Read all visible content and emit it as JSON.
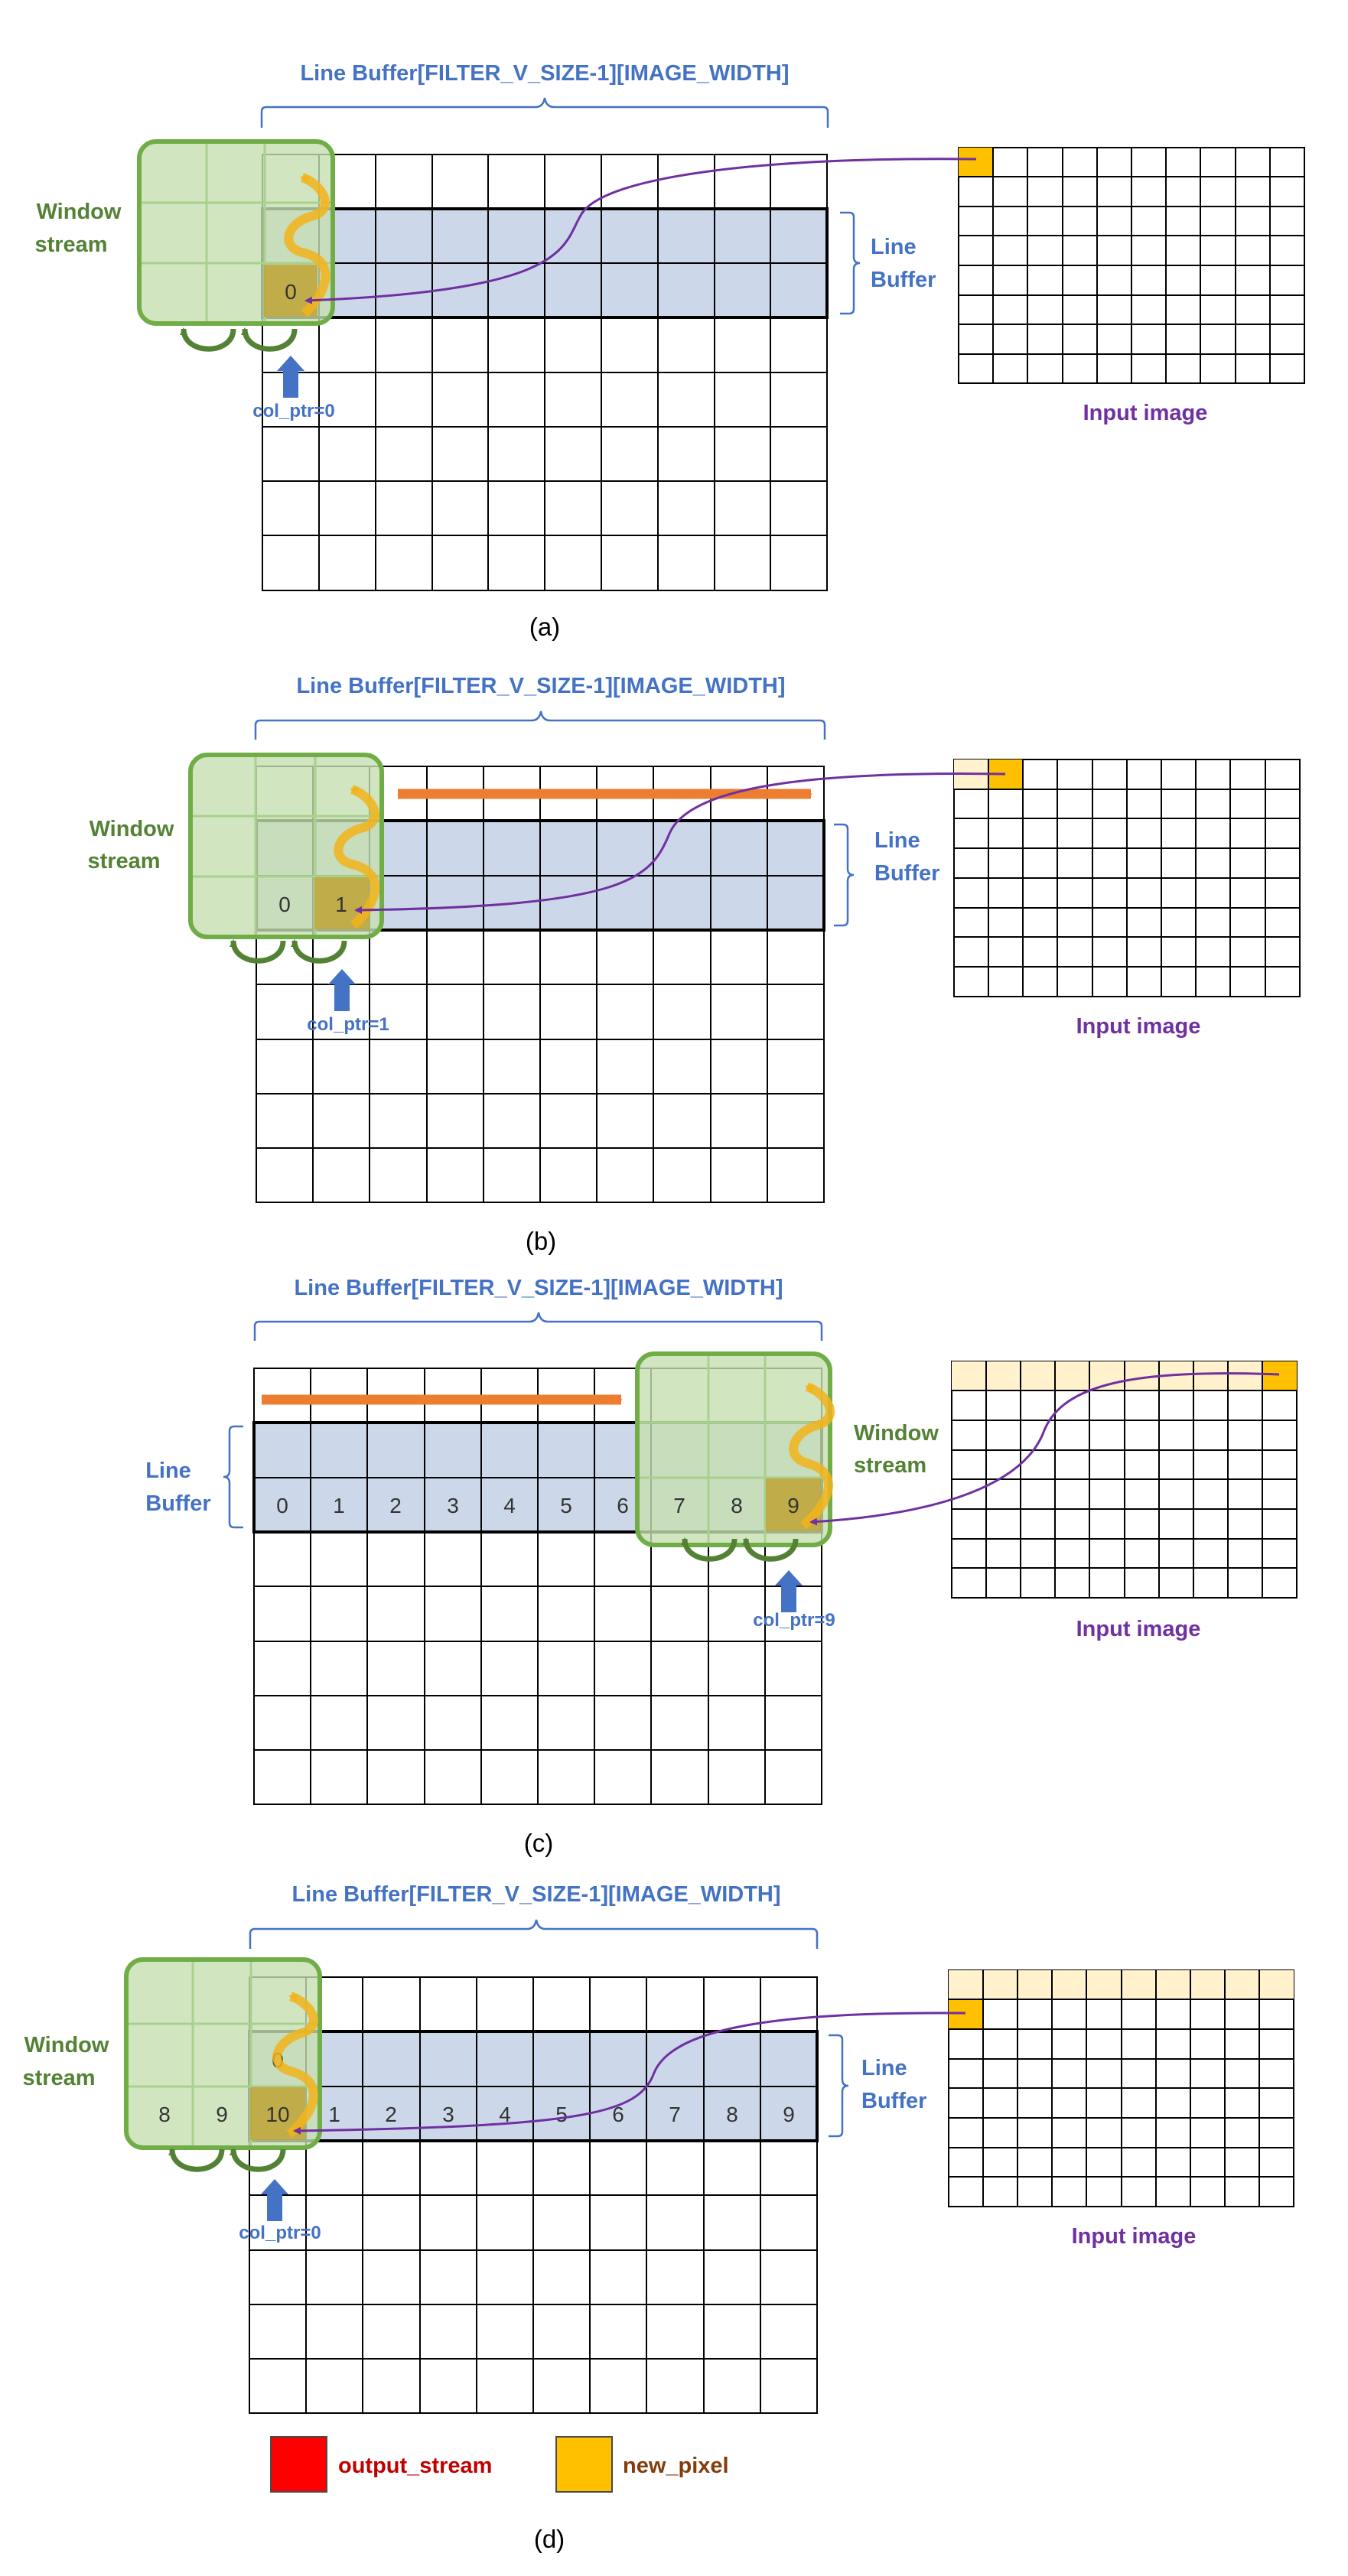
{
  "colors": {
    "grid_line": "#000000",
    "buffer_fill": "#CCD8EA",
    "window_fill": "#C6DFB0",
    "window_border": "#70AD47",
    "new_pixel": "#FFC000",
    "output_stream": "#FF0000",
    "consumed_pixel": "#FFF2CC",
    "brace": "#4472C4",
    "read_path": "#7030A0",
    "shift_arrow": "#ED7D31",
    "feed_arrow": "#F2B31B",
    "window_shift_arrow": "#548235",
    "ptr_arrow": "#4472C4"
  },
  "panels": [
    {
      "caption": "(a)",
      "line_buffer_title": "Line Buffer[FILTER_V_SIZE-1][IMAGE_WIDTH]",
      "window_label": [
        "Window",
        "stream"
      ],
      "buffer_label": [
        "Line",
        "Buffer"
      ],
      "input_label": "Input image",
      "col_ptr_label": "col_ptr=0",
      "cell_numbers": [
        "0"
      ]
    },
    {
      "caption": "(b)",
      "line_buffer_title": "Line Buffer[FILTER_V_SIZE-1][IMAGE_WIDTH]",
      "window_label": [
        "Window",
        "stream"
      ],
      "buffer_label": [
        "Line",
        "Buffer"
      ],
      "input_label": "Input image",
      "col_ptr_label": "col_ptr=1",
      "cell_numbers": [
        "0",
        "1"
      ]
    },
    {
      "caption": "(c)",
      "line_buffer_title": "Line Buffer[FILTER_V_SIZE-1][IMAGE_WIDTH]",
      "window_label": [
        "Window",
        "stream"
      ],
      "buffer_label": [
        "Line",
        "Buffer"
      ],
      "input_label": "Input image",
      "col_ptr_label": "col_ptr=9",
      "cell_numbers": [
        "0",
        "1",
        "2",
        "3",
        "4",
        "5",
        "6",
        "7",
        "8",
        "9"
      ]
    },
    {
      "caption": "(d)",
      "line_buffer_title": "Line Buffer[FILTER_V_SIZE-1][IMAGE_WIDTH]",
      "window_label": [
        "Window",
        "stream"
      ],
      "buffer_label": [
        "Line",
        "Buffer"
      ],
      "input_label": "Input image",
      "col_ptr_label": "col_ptr=0",
      "cell_numbers": [
        "0",
        "8",
        "9",
        "10",
        "1",
        "2",
        "3",
        "4",
        "5",
        "6",
        "7",
        "8",
        "9"
      ]
    }
  ],
  "legend": {
    "output_stream": "output_stream",
    "new_pixel": "new_pixel"
  }
}
